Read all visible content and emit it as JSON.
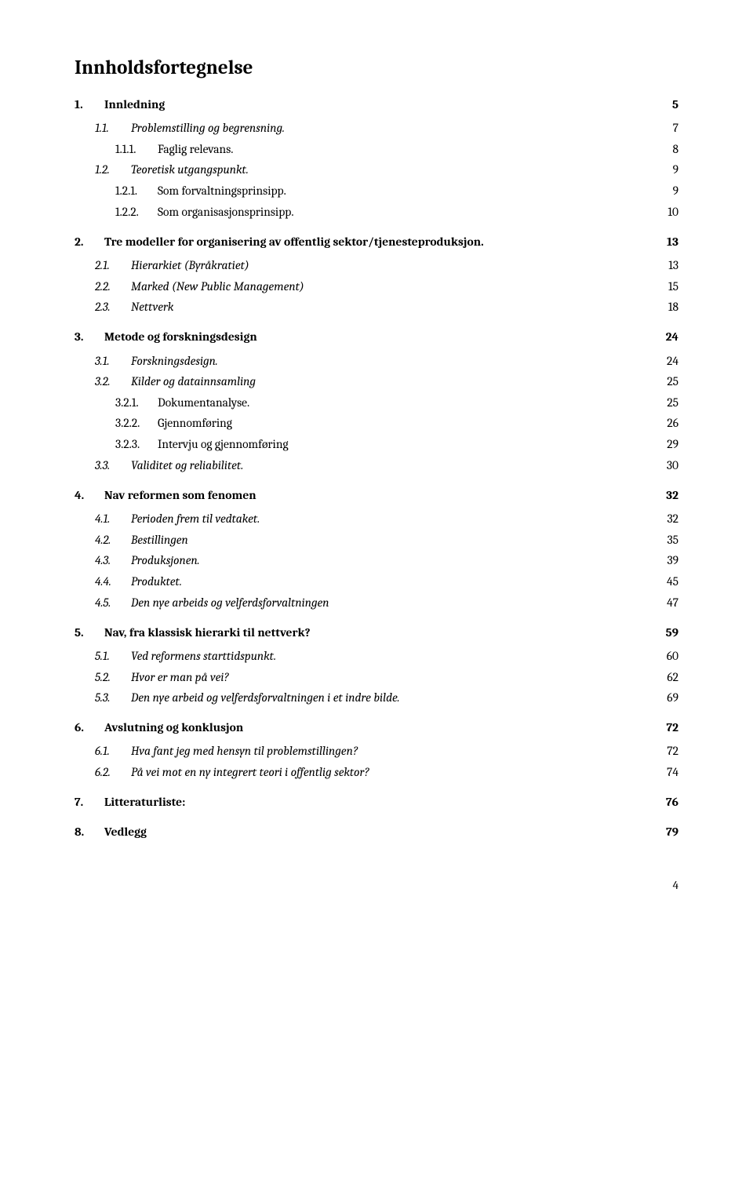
{
  "title": "Innholdsfortegnelse",
  "page_number": "4",
  "font": {
    "title_size_pt": 19,
    "body_size_pt": 12,
    "color": "#000000",
    "background": "#ffffff"
  },
  "entries": [
    {
      "level": 1,
      "num": "1.",
      "label": "Innledning",
      "page": "5",
      "bold": true,
      "italic": false
    },
    {
      "level": 2,
      "num": "1.1.",
      "label": "Problemstilling og begrensning.",
      "page": "7",
      "bold": false,
      "italic": true
    },
    {
      "level": 3,
      "num": "1.1.1.",
      "label": "Faglig relevans.",
      "page": "8",
      "bold": false,
      "italic": false
    },
    {
      "level": 2,
      "num": "1.2.",
      "label": "Teoretisk utgangspunkt.",
      "page": "9",
      "bold": false,
      "italic": true
    },
    {
      "level": 3,
      "num": "1.2.1.",
      "label": "Som forvaltningsprinsipp.",
      "page": "9",
      "bold": false,
      "italic": false
    },
    {
      "level": 3,
      "num": "1.2.2.",
      "label": "Som organisasjonsprinsipp.",
      "page": "10",
      "bold": false,
      "italic": false
    },
    {
      "level": 1,
      "num": "2.",
      "label": "Tre modeller for organisering av offentlig sektor/tjenesteproduksjon.",
      "page": "13",
      "bold": true,
      "italic": false
    },
    {
      "level": 2,
      "num": "2.1.",
      "label": "Hierarkiet (Byråkratiet)",
      "page": "13",
      "bold": false,
      "italic": true
    },
    {
      "level": 2,
      "num": "2.2.",
      "label": "Marked (New Public Management)",
      "page": "15",
      "bold": false,
      "italic": true
    },
    {
      "level": 2,
      "num": "2.3.",
      "label": "Nettverk",
      "page": "18",
      "bold": false,
      "italic": true
    },
    {
      "level": 1,
      "num": "3.",
      "label": "Metode og forskningsdesign",
      "page": "24",
      "bold": true,
      "italic": false
    },
    {
      "level": 2,
      "num": "3.1.",
      "label": "Forskningsdesign.",
      "page": "24",
      "bold": false,
      "italic": true
    },
    {
      "level": 2,
      "num": "3.2.",
      "label": "Kilder og datainnsamling",
      "page": "25",
      "bold": false,
      "italic": true
    },
    {
      "level": 3,
      "num": "3.2.1.",
      "label": "Dokumentanalyse.",
      "page": "25",
      "bold": false,
      "italic": false
    },
    {
      "level": 3,
      "num": "3.2.2.",
      "label": "Gjennomføring",
      "page": "26",
      "bold": false,
      "italic": false
    },
    {
      "level": 3,
      "num": "3.2.3.",
      "label": "Intervju og gjennomføring",
      "page": "29",
      "bold": false,
      "italic": false
    },
    {
      "level": 2,
      "num": "3.3.",
      "label": "Validitet og reliabilitet.",
      "page": "30",
      "bold": false,
      "italic": true
    },
    {
      "level": 1,
      "num": "4.",
      "label": "Nav reformen som fenomen",
      "page": "32",
      "bold": true,
      "italic": false
    },
    {
      "level": 2,
      "num": "4.1.",
      "label": "Perioden frem til vedtaket.",
      "page": "32",
      "bold": false,
      "italic": true
    },
    {
      "level": 2,
      "num": "4.2.",
      "label": "Bestillingen",
      "page": "35",
      "bold": false,
      "italic": true
    },
    {
      "level": 2,
      "num": "4.3.",
      "label": "Produksjonen.",
      "page": "39",
      "bold": false,
      "italic": true
    },
    {
      "level": 2,
      "num": "4.4.",
      "label": "Produktet.",
      "page": "45",
      "bold": false,
      "italic": true
    },
    {
      "level": 2,
      "num": "4.5.",
      "label": "Den nye arbeids og velferdsforvaltningen",
      "page": "47",
      "bold": false,
      "italic": true
    },
    {
      "level": 1,
      "num": "5.",
      "label": "Nav, fra klassisk hierarki til nettverk?",
      "page": "59",
      "bold": true,
      "italic": false
    },
    {
      "level": 2,
      "num": "5.1.",
      "label": "Ved reformens starttidspunkt.",
      "page": "60",
      "bold": false,
      "italic": true
    },
    {
      "level": 2,
      "num": "5.2.",
      "label": "Hvor er man på vei?",
      "page": "62",
      "bold": false,
      "italic": true
    },
    {
      "level": 2,
      "num": "5.3.",
      "label": "Den nye arbeid og velferdsforvaltningen i et indre bilde.",
      "page": "69",
      "bold": false,
      "italic": true
    },
    {
      "level": 1,
      "num": "6.",
      "label": "Avslutning og konklusjon",
      "page": "72",
      "bold": true,
      "italic": false
    },
    {
      "level": 2,
      "num": "6.1.",
      "label": "Hva fant jeg med hensyn til problemstillingen?",
      "page": "72",
      "bold": false,
      "italic": true
    },
    {
      "level": 2,
      "num": "6.2.",
      "label": "På vei mot en ny integrert teori i offentlig sektor?",
      "page": "74",
      "bold": false,
      "italic": true
    },
    {
      "level": 1,
      "num": "7.",
      "label": "Litteraturliste:",
      "page": "76",
      "bold": true,
      "italic": false
    },
    {
      "level": 1,
      "num": "8.",
      "label": "Vedlegg",
      "page": "79",
      "bold": true,
      "italic": false
    }
  ]
}
